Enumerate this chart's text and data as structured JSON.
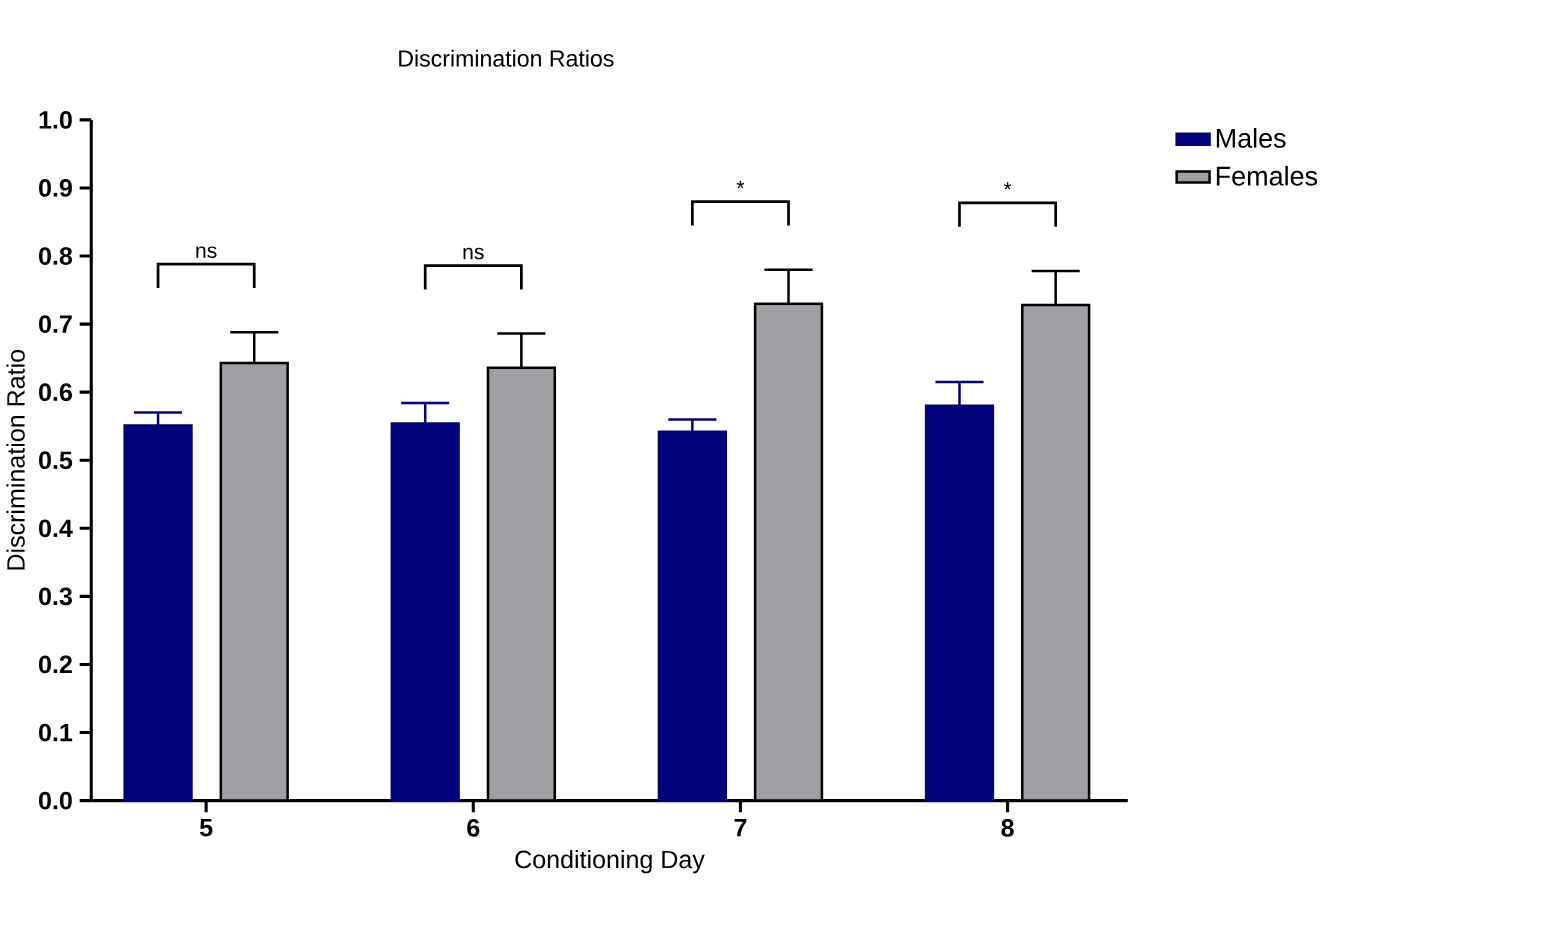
{
  "chart_data": {
    "type": "bar",
    "title": "Discrimination Ratios",
    "xlabel": "Conditioning Day",
    "ylabel": "Discrimination  Ratio",
    "categories": [
      "5",
      "6",
      "7",
      "8"
    ],
    "series": [
      {
        "name": "Males",
        "color": "#02037a",
        "values": [
          0.551,
          0.554,
          0.542,
          0.58
        ],
        "errors": [
          [
            0.551,
            0.57
          ],
          [
            0.554,
            0.584
          ],
          [
            0.542,
            0.56
          ],
          [
            0.58,
            0.615
          ]
        ]
      },
      {
        "name": "Females",
        "color": "#a0a0a4",
        "values": [
          0.643,
          0.636,
          0.73,
          0.728
        ],
        "errors": [
          [
            0.643,
            0.688
          ],
          [
            0.636,
            0.686
          ],
          [
            0.73,
            0.78
          ],
          [
            0.728,
            0.778
          ]
        ]
      }
    ],
    "ylim": [
      0,
      1
    ],
    "yticks": [
      {
        "value": 0,
        "label": "0.0"
      },
      {
        "value": 0.1,
        "label": "0.1"
      },
      {
        "value": 0.2,
        "label": "0.2"
      },
      {
        "value": 0.3,
        "label": "0.3"
      },
      {
        "value": 0.4,
        "label": "0.4"
      },
      {
        "value": 0.5,
        "label": "0.5"
      },
      {
        "value": 0.6,
        "label": "0.6"
      },
      {
        "value": 0.7,
        "label": "0.7"
      },
      {
        "value": 0.8,
        "label": "0.8"
      },
      {
        "value": 0.9,
        "label": "0.9"
      },
      {
        "value": 1,
        "label": "1.0"
      }
    ],
    "annotations": [
      "ns",
      "ns",
      "*",
      "*"
    ],
    "legend": "top right",
    "grid": false
  }
}
